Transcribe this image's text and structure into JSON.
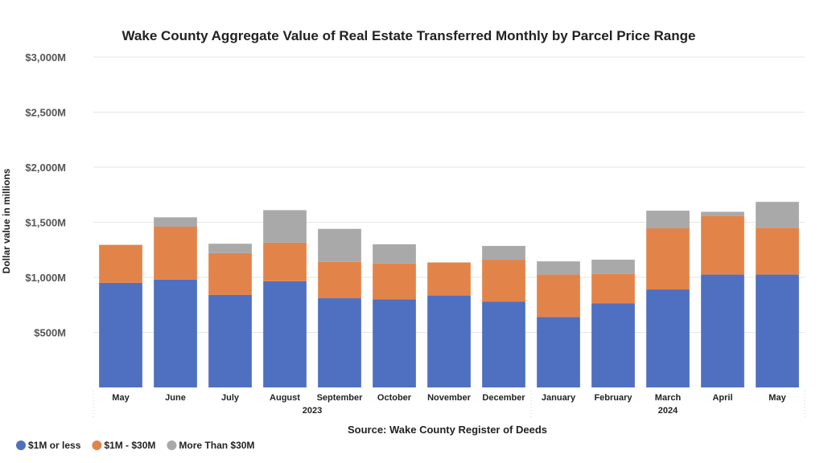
{
  "chart_data": {
    "type": "bar",
    "stacked": true,
    "title": "Wake County Aggregate Value of Real Estate Transferred Monthly by Parcel Price Range",
    "ylabel": "Dollar value in millions",
    "xlabel": "Source: Wake County Register of Deeds",
    "ylim": [
      0,
      3000
    ],
    "yticks": [
      {
        "value": 500,
        "label": "$500M"
      },
      {
        "value": 1000,
        "label": "$1,000M"
      },
      {
        "value": 1500,
        "label": "$1,500M"
      },
      {
        "value": 2000,
        "label": "$2,000M"
      },
      {
        "value": 2500,
        "label": "$2,500M"
      },
      {
        "value": 3000,
        "label": "$3,000M"
      }
    ],
    "grid": true,
    "legend_position": "bottom-left",
    "categories": [
      "May",
      "June",
      "July",
      "August",
      "September",
      "October",
      "November",
      "December",
      "January",
      "February",
      "March",
      "April",
      "May"
    ],
    "year_groups": [
      {
        "label": "2023",
        "start": 0,
        "end": 7
      },
      {
        "label": "2024",
        "start": 8,
        "end": 12
      }
    ],
    "series": [
      {
        "name": "$1M or less",
        "color": "#4F70C0",
        "values": [
          950,
          980,
          840,
          965,
          810,
          800,
          835,
          780,
          640,
          765,
          890,
          1025,
          1025
        ]
      },
      {
        "name": "$1M - $30M",
        "color": "#E2844A",
        "values": [
          345,
          480,
          380,
          350,
          330,
          325,
          300,
          380,
          385,
          265,
          555,
          530,
          425
        ]
      },
      {
        "name": "More Than $30M",
        "color": "#A9A9A9",
        "values": [
          0,
          85,
          85,
          295,
          300,
          175,
          0,
          125,
          120,
          130,
          160,
          40,
          235
        ]
      }
    ]
  }
}
